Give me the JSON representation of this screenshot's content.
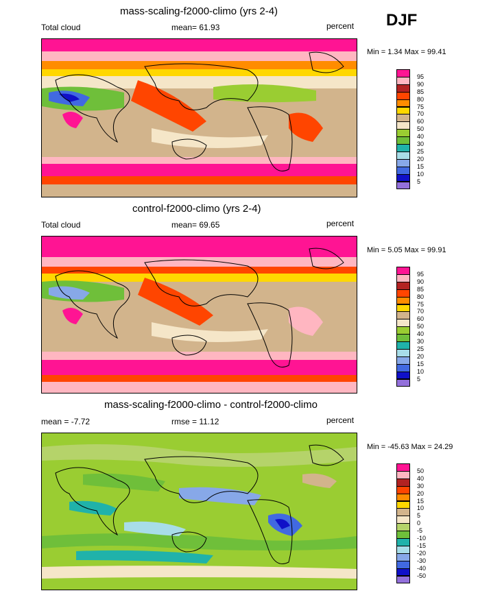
{
  "season": "DJF",
  "panels": [
    {
      "title": "mass-scaling-f2000-climo (yrs 2-4)",
      "left_label": "Total cloud",
      "center_label": "mean=  61.93",
      "right_label": "percent",
      "minmax": "Min =   1.34 Max =  99.41"
    },
    {
      "title": "control-f2000-climo (yrs 2-4)",
      "left_label": "Total cloud",
      "center_label": "mean=  69.65",
      "right_label": "percent",
      "minmax": "Min =   5.05 Max =  99.91"
    },
    {
      "title": "mass-scaling-f2000-climo - control-f2000-climo",
      "left_label": "mean =  -7.72",
      "center_label": "rmse =  11.12",
      "right_label": "percent",
      "minmax": "Min = -45.63 Max =  24.29"
    }
  ],
  "colorbars": {
    "field": {
      "labels": [
        "95",
        "90",
        "85",
        "80",
        "75",
        "70",
        "60",
        "50",
        "40",
        "30",
        "25",
        "20",
        "15",
        "10",
        "5"
      ],
      "colors": [
        "#ff1493",
        "#ffb6c1",
        "#b22222",
        "#ff4500",
        "#ff8c00",
        "#ffd700",
        "#d2b48c",
        "#f5e6c8",
        "#9acd32",
        "#6fbf3a",
        "#20b2aa",
        "#a8dde8",
        "#87a8e8",
        "#4169e1",
        "#1010c8",
        "#9370db"
      ]
    },
    "diff": {
      "labels": [
        "50",
        "40",
        "30",
        "20",
        "15",
        "10",
        "5",
        "0",
        "-5",
        "-10",
        "-15",
        "-20",
        "-30",
        "-40",
        "-50"
      ],
      "colors": [
        "#ff1493",
        "#ffb6c1",
        "#b22222",
        "#ff4500",
        "#ff8c00",
        "#ffd700",
        "#d2b48c",
        "#f5e6c8",
        "#b5d36a",
        "#6fbf3a",
        "#20b2aa",
        "#a8dde8",
        "#87a8e8",
        "#4169e1",
        "#1010c8",
        "#9370db"
      ]
    }
  }
}
